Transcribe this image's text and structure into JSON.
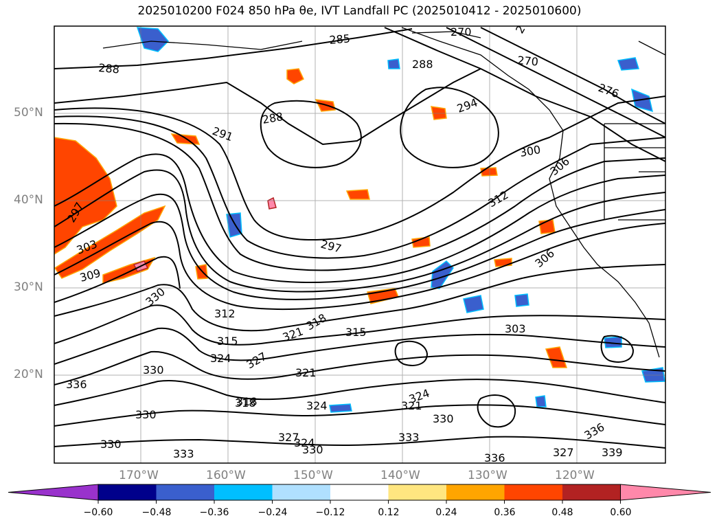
{
  "title": "2025010200 F024 850 hPa θe, IVT Landfall PC (2025010412 - 2025010600)",
  "map": {
    "lat_labels": [
      "50°N",
      "40°N",
      "30°N",
      "20°N"
    ],
    "lon_labels": [
      "170°W",
      "160°W",
      "150°W",
      "140°W",
      "130°W",
      "120°W"
    ],
    "contour_labels": [
      "270",
      "270",
      "285",
      "288",
      "288",
      "270",
      "276",
      "288",
      "291",
      "294",
      "300",
      "306",
      "312",
      "297",
      "297",
      "303",
      "309",
      "306",
      "303",
      "330",
      "312",
      "315",
      "321",
      "318",
      "315",
      "324",
      "327",
      "321",
      "330",
      "336",
      "330",
      "318",
      "324",
      "324",
      "321",
      "330",
      "327",
      "324",
      "333",
      "330",
      "330",
      "333",
      "336",
      "336",
      "339",
      "327",
      "318"
    ],
    "fill_colors": {
      "red": "#ff4500",
      "orange": "#ffa500",
      "yellow": "#ffe680",
      "light_blue": "#b0e0ff",
      "sky_blue": "#00bfff",
      "blue": "#3a5fcd",
      "navy": "#00008b",
      "dark_red": "#b22222",
      "pink": "#ff88aa"
    }
  },
  "colorbar": {
    "ticks": [
      "−0.60",
      "−0.48",
      "−0.36",
      "−0.24",
      "−0.12",
      "0.12",
      "0.24",
      "0.36",
      "0.48",
      "0.60"
    ],
    "colors": [
      "#9932cc",
      "#00008b",
      "#3a5fcd",
      "#00bfff",
      "#b0e0ff",
      "#ffffff",
      "#ffe680",
      "#ffa500",
      "#ff4500",
      "#b22222",
      "#ff88aa"
    ]
  }
}
